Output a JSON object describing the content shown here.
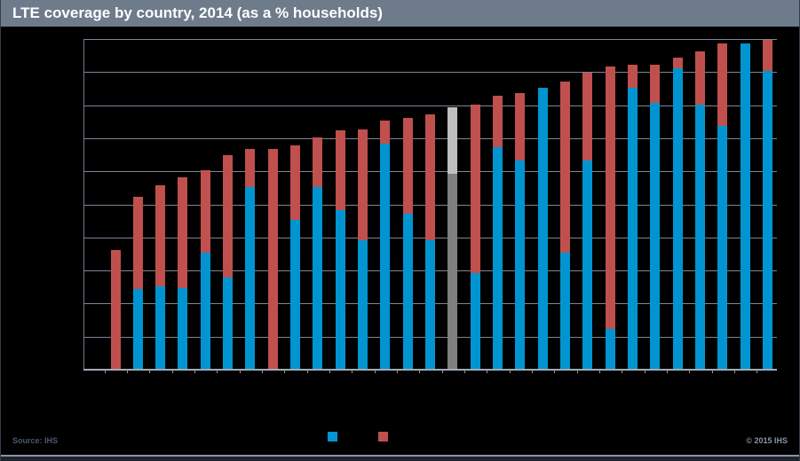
{
  "header": {
    "title": "LTE coverage by country, 2014 (as a % households)",
    "background_color": "#6e7b8a",
    "text_color": "#ffffff"
  },
  "footer": {
    "source": "Source: IHS",
    "copyright": "© 2015 IHS"
  },
  "legend": {
    "items": [
      {
        "name": "primary-series",
        "color": "#0095d0"
      },
      {
        "name": "secondary-series",
        "color": "#bf504d"
      }
    ]
  },
  "chart_data": {
    "type": "bar",
    "subtype": "stacked-vertical",
    "title": "LTE coverage by country, 2014 (as a % households)",
    "xlabel": "",
    "ylabel": "",
    "ylim": [
      0,
      100
    ],
    "gridline_interval": 10,
    "grid": true,
    "x_tick_labels_visible": false,
    "y_tick_labels_visible": false,
    "legend_position": "bottom",
    "colors": {
      "primary": "#0095d0",
      "secondary": "#bf504d",
      "highlight_primary": "#7f7f7f",
      "highlight_secondary": "#bfbfbf",
      "background": "#000000",
      "gridline": "#7c8699"
    },
    "series": [
      {
        "name": "primary (blue)",
        "role": "bottom segment"
      },
      {
        "name": "secondary (red)",
        "role": "top segment"
      }
    ],
    "bars": [
      {
        "primary": 0,
        "secondary": 36,
        "total": 36,
        "highlight": false
      },
      {
        "primary": 24,
        "secondary": 28,
        "total": 52,
        "highlight": false
      },
      {
        "primary": 25,
        "secondary": 30.5,
        "total": 55.5,
        "highlight": false
      },
      {
        "primary": 24.5,
        "secondary": 33.5,
        "total": 58,
        "highlight": false
      },
      {
        "primary": 35,
        "secondary": 25,
        "total": 60,
        "highlight": false
      },
      {
        "primary": 27.5,
        "secondary": 37,
        "total": 64.5,
        "highlight": false
      },
      {
        "primary": 55,
        "secondary": 11.5,
        "total": 66.5,
        "highlight": false
      },
      {
        "primary": 0,
        "secondary": 66.5,
        "total": 66.5,
        "highlight": false
      },
      {
        "primary": 45,
        "secondary": 22.5,
        "total": 67.5,
        "highlight": false
      },
      {
        "primary": 55,
        "secondary": 15,
        "total": 70,
        "highlight": false
      },
      {
        "primary": 48,
        "secondary": 24,
        "total": 72,
        "highlight": false
      },
      {
        "primary": 39,
        "secondary": 33.5,
        "total": 72.5,
        "highlight": false
      },
      {
        "primary": 68,
        "secondary": 7,
        "total": 75,
        "highlight": false
      },
      {
        "primary": 47,
        "secondary": 29,
        "total": 76,
        "highlight": false
      },
      {
        "primary": 39,
        "secondary": 38,
        "total": 77,
        "highlight": false
      },
      {
        "primary": 59,
        "secondary": 20,
        "total": 79,
        "highlight": true
      },
      {
        "primary": 29,
        "secondary": 51,
        "total": 80,
        "highlight": false
      },
      {
        "primary": 67,
        "secondary": 15.5,
        "total": 82.5,
        "highlight": false
      },
      {
        "primary": 63,
        "secondary": 20.5,
        "total": 83.5,
        "highlight": false
      },
      {
        "primary": 85,
        "secondary": 0,
        "total": 85,
        "highlight": false
      },
      {
        "primary": 35,
        "secondary": 52,
        "total": 87,
        "highlight": false
      },
      {
        "primary": 63,
        "secondary": 26.5,
        "total": 89.5,
        "highlight": false
      },
      {
        "primary": 12,
        "secondary": 79.5,
        "total": 91.5,
        "highlight": false
      },
      {
        "primary": 85,
        "secondary": 7,
        "total": 92,
        "highlight": false
      },
      {
        "primary": 80.5,
        "secondary": 11.5,
        "total": 92,
        "highlight": false
      },
      {
        "primary": 91,
        "secondary": 3,
        "total": 94,
        "highlight": false
      },
      {
        "primary": 80,
        "secondary": 16,
        "total": 96,
        "highlight": false
      },
      {
        "primary": 73.5,
        "secondary": 25,
        "total": 98.5,
        "highlight": false
      },
      {
        "primary": 98.5,
        "secondary": 0,
        "total": 98.5,
        "highlight": false
      },
      {
        "primary": 90,
        "secondary": 9.5,
        "total": 99.5,
        "highlight": false
      }
    ]
  }
}
